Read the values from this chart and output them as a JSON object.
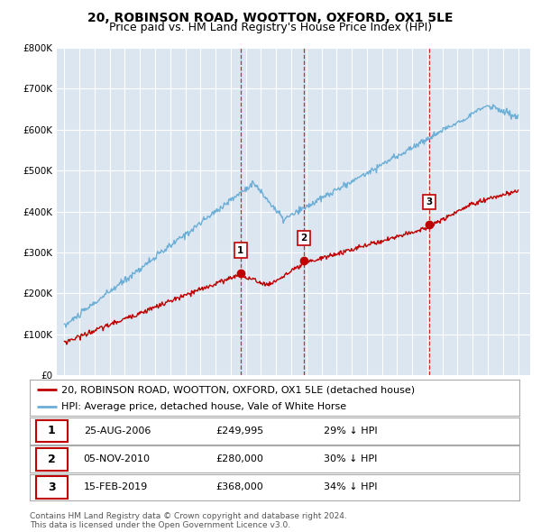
{
  "title": "20, ROBINSON ROAD, WOOTTON, OXFORD, OX1 5LE",
  "subtitle": "Price paid vs. HM Land Registry's House Price Index (HPI)",
  "ylim": [
    0,
    800000
  ],
  "yticks": [
    0,
    100000,
    200000,
    300000,
    400000,
    500000,
    600000,
    700000,
    800000
  ],
  "ytick_labels": [
    "£0",
    "£100K",
    "£200K",
    "£300K",
    "£400K",
    "£500K",
    "£600K",
    "£700K",
    "£800K"
  ],
  "hpi_color": "#6baed6",
  "price_color": "#c00000",
  "background_color": "#dce6f1",
  "grid_color": "#ffffff",
  "sale_dates": [
    2006.648,
    2010.844,
    2019.122
  ],
  "sale_prices": [
    249995,
    280000,
    368000
  ],
  "sale_labels": [
    "1",
    "2",
    "3"
  ],
  "sale_label_offsets": [
    55000,
    55000,
    55000
  ],
  "sale_label_info": [
    {
      "num": "1",
      "date": "25-AUG-2006",
      "price": "£249,995",
      "pct": "29% ↓ HPI"
    },
    {
      "num": "2",
      "date": "05-NOV-2010",
      "price": "£280,000",
      "pct": "30% ↓ HPI"
    },
    {
      "num": "3",
      "date": "15-FEB-2019",
      "price": "£368,000",
      "pct": "34% ↓ HPI"
    }
  ],
  "legend_entries": [
    "20, ROBINSON ROAD, WOOTTON, OXFORD, OX1 5LE (detached house)",
    "HPI: Average price, detached house, Vale of White Horse"
  ],
  "footer": "Contains HM Land Registry data © Crown copyright and database right 2024.\nThis data is licensed under the Open Government Licence v3.0.",
  "title_fontsize": 10,
  "subtitle_fontsize": 9,
  "tick_fontsize": 7.5,
  "legend_fontsize": 8,
  "table_fontsize": 8
}
